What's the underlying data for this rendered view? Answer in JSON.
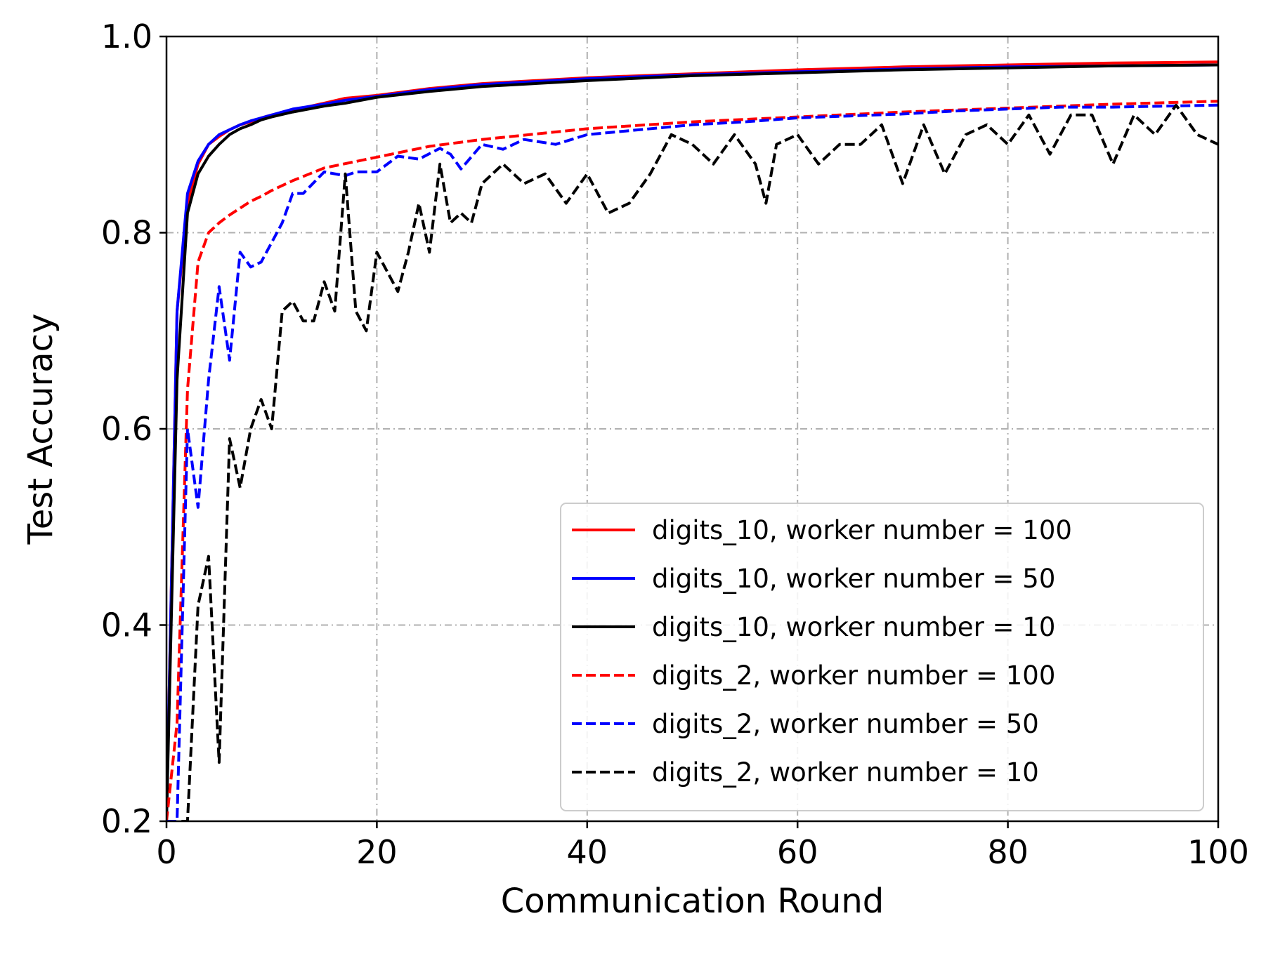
{
  "chart_data": {
    "type": "line",
    "title": "",
    "xlabel": "Communication Round",
    "ylabel": "Test Accuracy",
    "xlim": [
      0,
      100
    ],
    "ylim": [
      0.2,
      1.0
    ],
    "xticks": [
      0,
      20,
      40,
      60,
      80,
      100
    ],
    "xtick_labels": [
      "0",
      "20",
      "40",
      "60",
      "80",
      "100"
    ],
    "yticks": [
      0.2,
      0.4,
      0.6,
      0.8,
      1.0
    ],
    "ytick_labels": [
      "0.2",
      "0.4",
      "0.6",
      "0.8",
      "1.0"
    ],
    "grid": true,
    "legend_position": "lower-right",
    "series": [
      {
        "name": "digits_10, worker number = 100",
        "color": "#ff0000",
        "dash": "solid",
        "x": [
          0,
          1,
          2,
          3,
          4,
          5,
          6,
          7,
          8,
          9,
          10,
          12,
          15,
          17,
          20,
          25,
          30,
          40,
          50,
          60,
          70,
          80,
          90,
          100
        ],
        "y": [
          0.2,
          0.72,
          0.83,
          0.87,
          0.89,
          0.898,
          0.905,
          0.91,
          0.913,
          0.917,
          0.92,
          0.925,
          0.932,
          0.937,
          0.94,
          0.947,
          0.952,
          0.958,
          0.962,
          0.966,
          0.969,
          0.971,
          0.973,
          0.974
        ]
      },
      {
        "name": "digits_10, worker number = 50",
        "color": "#0000ff",
        "dash": "solid",
        "x": [
          0,
          1,
          2,
          3,
          4,
          5,
          6,
          7,
          8,
          9,
          10,
          12,
          15,
          17,
          20,
          25,
          30,
          40,
          50,
          60,
          70,
          80,
          90,
          100
        ],
        "y": [
          0.2,
          0.72,
          0.84,
          0.873,
          0.89,
          0.9,
          0.905,
          0.91,
          0.914,
          0.917,
          0.92,
          0.926,
          0.931,
          0.935,
          0.939,
          0.946,
          0.951,
          0.957,
          0.961,
          0.964,
          0.967,
          0.969,
          0.97,
          0.971
        ]
      },
      {
        "name": "digits_10, worker number = 10",
        "color": "#000000",
        "dash": "solid",
        "x": [
          0,
          1,
          2,
          3,
          4,
          5,
          6,
          7,
          8,
          9,
          10,
          12,
          15,
          17,
          20,
          25,
          30,
          40,
          50,
          60,
          70,
          80,
          90,
          100
        ],
        "y": [
          0.2,
          0.65,
          0.82,
          0.86,
          0.878,
          0.89,
          0.9,
          0.906,
          0.91,
          0.915,
          0.918,
          0.923,
          0.929,
          0.932,
          0.938,
          0.944,
          0.949,
          0.955,
          0.96,
          0.963,
          0.966,
          0.968,
          0.97,
          0.971
        ]
      },
      {
        "name": "digits_2, worker number = 100",
        "color": "#ff0000",
        "dash": "dashed",
        "x": [
          0,
          1,
          2,
          3,
          4,
          5,
          6,
          7,
          8,
          9,
          10,
          12,
          15,
          20,
          25,
          30,
          40,
          50,
          60,
          70,
          80,
          90,
          100
        ],
        "y": [
          0.2,
          0.3,
          0.64,
          0.77,
          0.8,
          0.81,
          0.818,
          0.825,
          0.832,
          0.837,
          0.843,
          0.853,
          0.866,
          0.877,
          0.888,
          0.895,
          0.906,
          0.913,
          0.918,
          0.923,
          0.927,
          0.931,
          0.934
        ]
      },
      {
        "name": "digits_2, worker number = 50",
        "color": "#0000ff",
        "dash": "dashed",
        "x": [
          0,
          1,
          2,
          3,
          4,
          5,
          6,
          7,
          8,
          9,
          10,
          11,
          12,
          13,
          15,
          17,
          18,
          20,
          22,
          24,
          26,
          27,
          28,
          30,
          32,
          34,
          37,
          40,
          45,
          50,
          55,
          60,
          65,
          70,
          75,
          80,
          85,
          90,
          95,
          100
        ],
        "y": [
          0.2,
          0.2,
          0.6,
          0.52,
          0.65,
          0.745,
          0.67,
          0.78,
          0.765,
          0.77,
          0.79,
          0.81,
          0.84,
          0.84,
          0.862,
          0.858,
          0.862,
          0.862,
          0.878,
          0.875,
          0.886,
          0.88,
          0.865,
          0.89,
          0.885,
          0.895,
          0.89,
          0.9,
          0.905,
          0.91,
          0.913,
          0.917,
          0.919,
          0.921,
          0.924,
          0.926,
          0.928,
          0.928,
          0.929,
          0.93
        ]
      },
      {
        "name": "digits_2, worker number = 10",
        "color": "#000000",
        "dash": "dashed",
        "x": [
          0,
          1,
          1.5,
          2,
          3,
          4,
          5,
          6,
          7,
          8,
          9,
          10,
          11,
          12,
          13,
          14,
          15,
          16,
          17,
          18,
          19,
          20,
          21,
          22,
          23,
          24,
          25,
          26,
          27,
          28,
          29,
          30,
          32,
          34,
          36,
          38,
          40,
          42,
          44,
          46,
          48,
          50,
          52,
          54,
          56,
          57,
          58,
          60,
          62,
          63,
          64,
          66,
          68,
          70,
          72,
          74,
          76,
          78,
          80,
          82,
          84,
          86,
          88,
          90,
          92,
          94,
          96,
          98,
          100
        ],
        "y": [
          0.2,
          0.1,
          0.2,
          0.2,
          0.42,
          0.47,
          0.26,
          0.59,
          0.54,
          0.6,
          0.63,
          0.6,
          0.72,
          0.73,
          0.71,
          0.71,
          0.75,
          0.72,
          0.86,
          0.72,
          0.7,
          0.78,
          0.76,
          0.74,
          0.78,
          0.83,
          0.78,
          0.87,
          0.81,
          0.82,
          0.81,
          0.85,
          0.87,
          0.85,
          0.86,
          0.83,
          0.86,
          0.82,
          0.83,
          0.86,
          0.9,
          0.89,
          0.87,
          0.9,
          0.87,
          0.83,
          0.89,
          0.9,
          0.87,
          0.88,
          0.89,
          0.89,
          0.91,
          0.85,
          0.91,
          0.86,
          0.9,
          0.91,
          0.89,
          0.92,
          0.88,
          0.92,
          0.92,
          0.87,
          0.92,
          0.9,
          0.93,
          0.9,
          0.89
        ]
      }
    ]
  }
}
